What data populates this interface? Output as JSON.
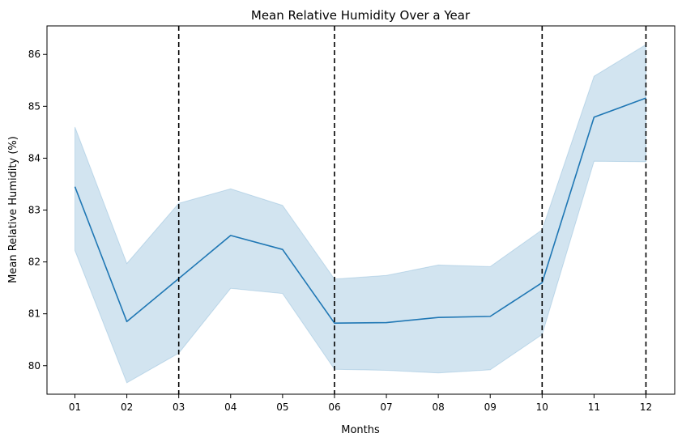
{
  "chart_data": {
    "type": "line",
    "title": "Mean Relative Humidity Over a Year",
    "xlabel": "Months",
    "ylabel": "Mean Relative Humidity (%)",
    "categories": [
      "01",
      "02",
      "03",
      "04",
      "05",
      "06",
      "07",
      "08",
      "09",
      "10",
      "11",
      "12"
    ],
    "series": [
      {
        "values": [
          83.45,
          80.85,
          81.68,
          82.51,
          82.24,
          80.82,
          80.83,
          80.93,
          80.95,
          81.6,
          84.79,
          85.16
        ],
        "lower": [
          82.22,
          79.67,
          80.24,
          81.49,
          81.39,
          79.93,
          79.91,
          79.86,
          79.92,
          80.6,
          83.94,
          83.93
        ],
        "upper": [
          84.6,
          81.97,
          83.13,
          83.41,
          83.09,
          81.67,
          81.74,
          81.94,
          81.91,
          82.62,
          85.58,
          86.19
        ],
        "color": "#1f77b4",
        "band_color": "#1f77b4"
      }
    ],
    "vertical_lines": {
      "at": [
        "03",
        "06",
        "10",
        "12"
      ],
      "style": "dashed",
      "color": "#000000"
    },
    "ylim": [
      79.45,
      86.55
    ],
    "yticks": [
      80,
      81,
      82,
      83,
      84,
      85,
      86
    ],
    "grid": false,
    "legend": "none"
  }
}
